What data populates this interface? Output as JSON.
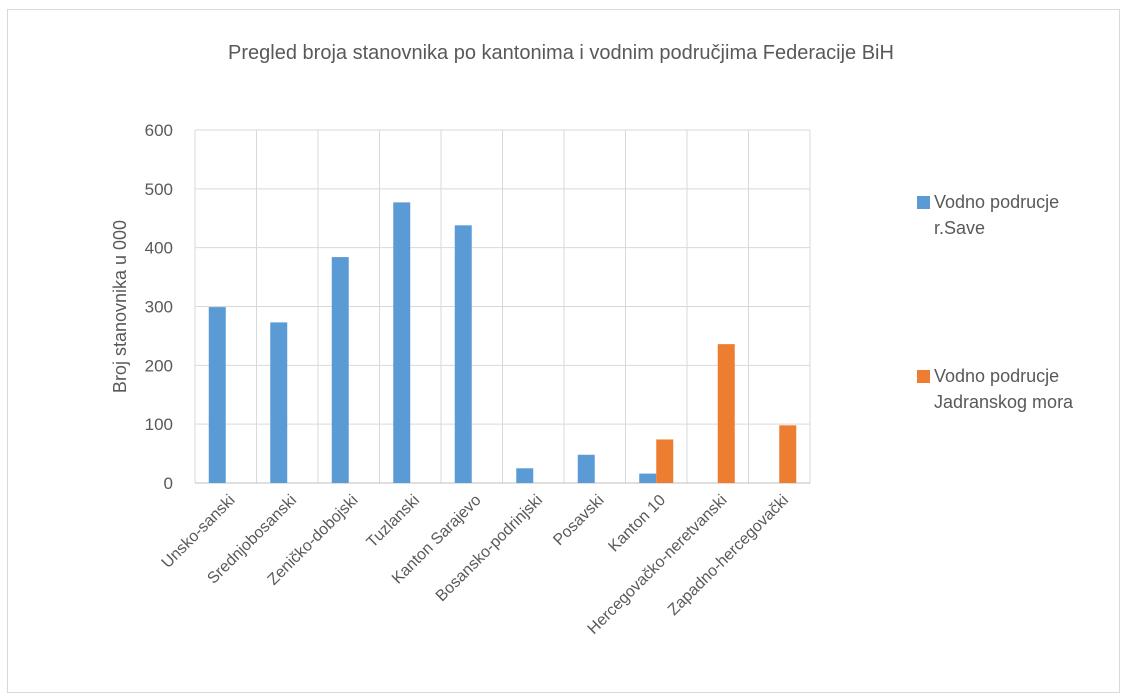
{
  "chart_data": {
    "type": "bar",
    "title": "Pregled broja stanovnika po kantonima i vodnim područjima Federacije BiH",
    "ylabel": "Broj stanovnika u 000",
    "xlabel": "",
    "ylim": [
      0,
      600
    ],
    "yticks": [
      0,
      100,
      200,
      300,
      400,
      500,
      600
    ],
    "grid": true,
    "legend_position": "right",
    "categories": [
      "Unsko-sanski",
      "Srednjobosanski",
      "Zeničko-dobojski",
      "Tuzlanski",
      "Kanton Sarajevo",
      "Bosansko-podrinjski",
      "Posavski",
      "Kanton 10",
      "Hercegovačko-neretvanski",
      "Zapadno-hercegovački"
    ],
    "series": [
      {
        "name": "Vodno podrucje r.Save",
        "color": "#5b9bd5",
        "values": [
          299,
          273,
          384,
          477,
          438,
          25,
          48,
          16,
          0,
          0
        ]
      },
      {
        "name": "Vodno podrucje Jadranskog mora",
        "color": "#ed7d31",
        "values": [
          0,
          0,
          0,
          0,
          0,
          0,
          0,
          74,
          236,
          98
        ]
      }
    ]
  }
}
